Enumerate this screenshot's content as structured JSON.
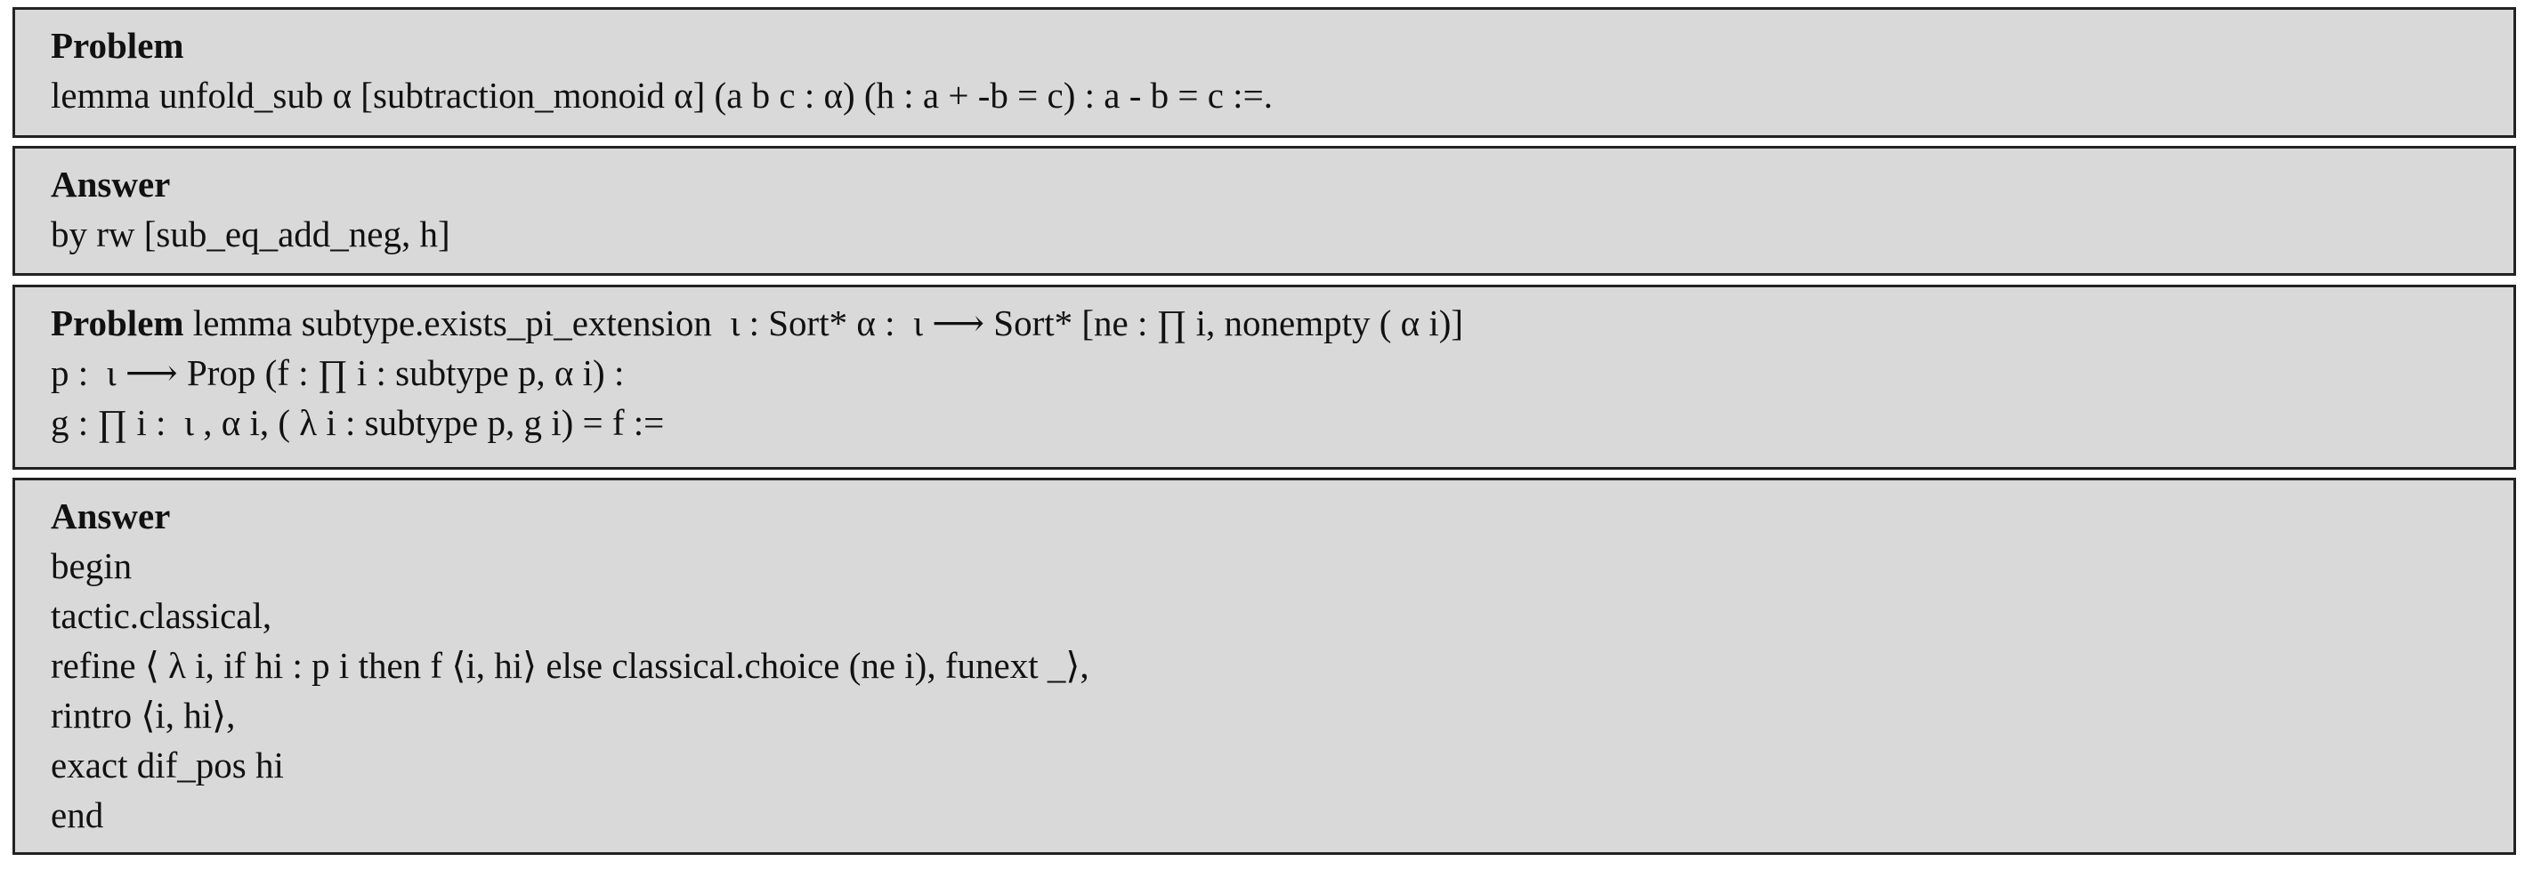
{
  "blocks": [
    {
      "heading": "Problem",
      "lines": [
        "lemma unfold_sub α [subtraction_monoid α] (a b c : α) (h : a + -b = c) : a - b = c :=."
      ]
    },
    {
      "heading": "Answer",
      "lines": [
        "by rw [sub_eq_add_neg, h]"
      ]
    },
    {
      "heading": "Problem",
      "first_line_rest": " lemma subtype.exists_pi_extension  ι : Sort* α :  ι ⟶ Sort* [ne : ∏ i, nonempty ( α i)]",
      "lines": [
        "p :  ι ⟶ Prop (f : ∏ i : subtype p, α i) :",
        "g : ∏ i :  ι , α i, ( λ i : subtype p, g i) = f :="
      ]
    },
    {
      "heading": "Answer",
      "lines": [
        "begin",
        "tactic.classical,",
        "refine ⟨ λ i, if hi : p i then f ⟨i, hi⟩ else classical.choice (ne i), funext _⟩,",
        "rintro ⟨i, hi⟩,",
        "exact dif_pos hi",
        "end"
      ]
    }
  ]
}
